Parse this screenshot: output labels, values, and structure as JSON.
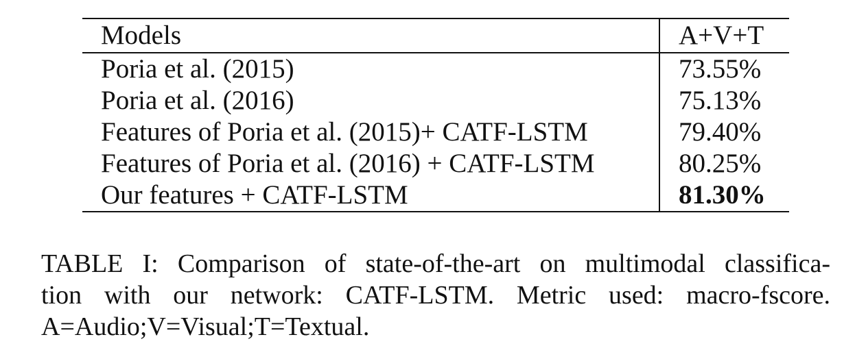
{
  "table": {
    "headers": [
      "Models",
      "A+V+T"
    ],
    "rows": [
      {
        "model": "Poria et al. (2015)",
        "score": "73.55%"
      },
      {
        "model": "Poria et al. (2016)",
        "score": "75.13%"
      },
      {
        "model": "Features of Poria et al. (2015)+ CATF-LSTM",
        "score": "79.40%"
      },
      {
        "model": "Features of Poria et al. (2016) + CATF-LSTM",
        "score": "80.25%"
      },
      {
        "model": "Our features + CATF-LSTM",
        "score": "81.30%"
      }
    ]
  },
  "caption": {
    "line1": "TABLE I: Comparison of state-of-the-art on multimodal classifica-",
    "line2": "tion with our network: CATF-LSTM. Metric used: macro-fscore.",
    "line3": "A=Audio;V=Visual;T=Textual."
  }
}
